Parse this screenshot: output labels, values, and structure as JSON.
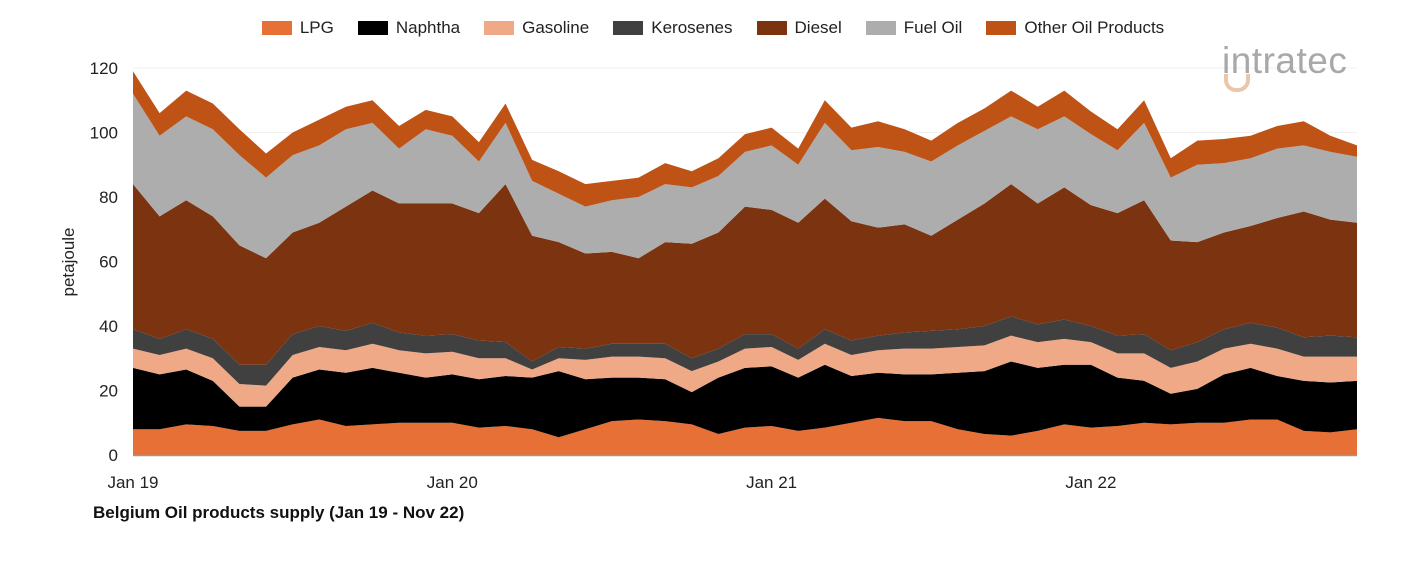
{
  "chart_data": {
    "type": "area",
    "stacked": true,
    "title": "Belgium Oil products supply (Jan 19 - Nov 22)",
    "ylabel": "petajoule",
    "xlabel": "",
    "ylim": [
      0,
      120
    ],
    "yticks": [
      "0",
      "20",
      "40",
      "60",
      "80",
      "100",
      "120"
    ],
    "xticks": [
      {
        "label": "Jan 19",
        "index": 0
      },
      {
        "label": "Jan 20",
        "index": 12
      },
      {
        "label": "Jan 21",
        "index": 24
      },
      {
        "label": "Jan 22",
        "index": 36
      }
    ],
    "x_start": "Jan 19",
    "x_end": "Nov 22",
    "legend_position": "top",
    "grid": true,
    "series": [
      {
        "name": "LPG",
        "color": "#E67035",
        "values": [
          8,
          8,
          9.5,
          9,
          7.5,
          7.5,
          9.5,
          11,
          9,
          9.5,
          10,
          10,
          10,
          8.5,
          9,
          8,
          5.5,
          8,
          10.5,
          11,
          10.5,
          9.5,
          6.5,
          8.5,
          9,
          7.5,
          8.5,
          10,
          11.5,
          10.5,
          10.5,
          8,
          6.5,
          6,
          7.5,
          9.5,
          8.5,
          9,
          10,
          9.5,
          10,
          10,
          11,
          11,
          7.5,
          7,
          8
        ]
      },
      {
        "name": "Naphtha",
        "color": "#000000",
        "values": [
          19,
          17,
          17,
          14,
          7.5,
          7.5,
          14.5,
          15.5,
          16.5,
          17.5,
          15.5,
          14,
          15,
          15,
          15.5,
          16,
          20.5,
          15.5,
          13.5,
          13,
          13,
          10,
          17.5,
          18.5,
          18.5,
          16.5,
          19.5,
          14.5,
          14,
          14.5,
          14.5,
          17.5,
          19.5,
          23,
          19.5,
          18.5,
          19.5,
          15,
          13,
          9.5,
          10.5,
          15,
          16,
          13.5,
          15.5,
          15.5,
          15
        ]
      },
      {
        "name": "Gasoline",
        "color": "#F0A986",
        "values": [
          6,
          6,
          6.5,
          7,
          7,
          6.5,
          7,
          7,
          7,
          7.5,
          7,
          7.5,
          7,
          6.5,
          5.5,
          2.5,
          4,
          6,
          6.5,
          6.5,
          6.5,
          6.5,
          5,
          6,
          6,
          5.5,
          6.5,
          6.5,
          7,
          8,
          8,
          8,
          8,
          8,
          8,
          8,
          7,
          7.5,
          8.5,
          8,
          8.5,
          8,
          7.5,
          8.5,
          7.5,
          8,
          7.5
        ]
      },
      {
        "name": "Kerosenes",
        "color": "#404040",
        "values": [
          6,
          5,
          6,
          6,
          6,
          6.5,
          6.5,
          6.5,
          6,
          6.5,
          5.5,
          5.5,
          5.5,
          5.5,
          5,
          2.5,
          3.5,
          3.5,
          4,
          4,
          4.5,
          4,
          4,
          4.5,
          4,
          3.5,
          4.5,
          4.5,
          4.5,
          5,
          5.5,
          5.5,
          6,
          6,
          5.5,
          6,
          5,
          5.5,
          6,
          5.5,
          6,
          6,
          6.5,
          6.5,
          6,
          6.5,
          6
        ]
      },
      {
        "name": "Diesel",
        "color": "#7B3310",
        "values": [
          45,
          38,
          40,
          38,
          37,
          33,
          31.5,
          32,
          38.5,
          41,
          40,
          41,
          40.5,
          39.5,
          49,
          39,
          32.5,
          29.5,
          28.5,
          26.5,
          31.5,
          35.5,
          36,
          39.5,
          38.5,
          39,
          40.5,
          37,
          33.5,
          33.5,
          29.5,
          34,
          38,
          41,
          37.5,
          41,
          37.5,
          38,
          41.5,
          34,
          31,
          30,
          30,
          34,
          39,
          36,
          35.5
        ]
      },
      {
        "name": "Fuel Oil",
        "color": "#ADADAD",
        "values": [
          28,
          25,
          26,
          27,
          28,
          25,
          24,
          24,
          24,
          21,
          17,
          23,
          21,
          16,
          19,
          17,
          15,
          14.5,
          16,
          19,
          18,
          17.5,
          17.5,
          17,
          20,
          18,
          23.5,
          22,
          25,
          22.5,
          23,
          23,
          22.5,
          21,
          23,
          22,
          22,
          19.5,
          24,
          19.5,
          24,
          21.5,
          21,
          21.5,
          20.5,
          21,
          20.5
        ]
      },
      {
        "name": "Other Oil Products",
        "color": "#BF5316",
        "values": [
          7,
          7,
          8,
          8,
          8,
          7.5,
          7,
          8,
          7,
          7,
          7,
          6,
          6,
          6,
          6,
          6.5,
          7,
          7,
          6,
          6,
          6.5,
          5,
          5.5,
          5.5,
          5.5,
          5,
          7,
          7,
          8,
          7,
          6.5,
          7,
          7,
          8,
          7,
          8,
          7,
          6.5,
          7,
          6,
          7.5,
          7.5,
          7,
          7,
          7.5,
          5,
          3.5
        ]
      }
    ]
  },
  "logo": {
    "text": "intratec"
  }
}
